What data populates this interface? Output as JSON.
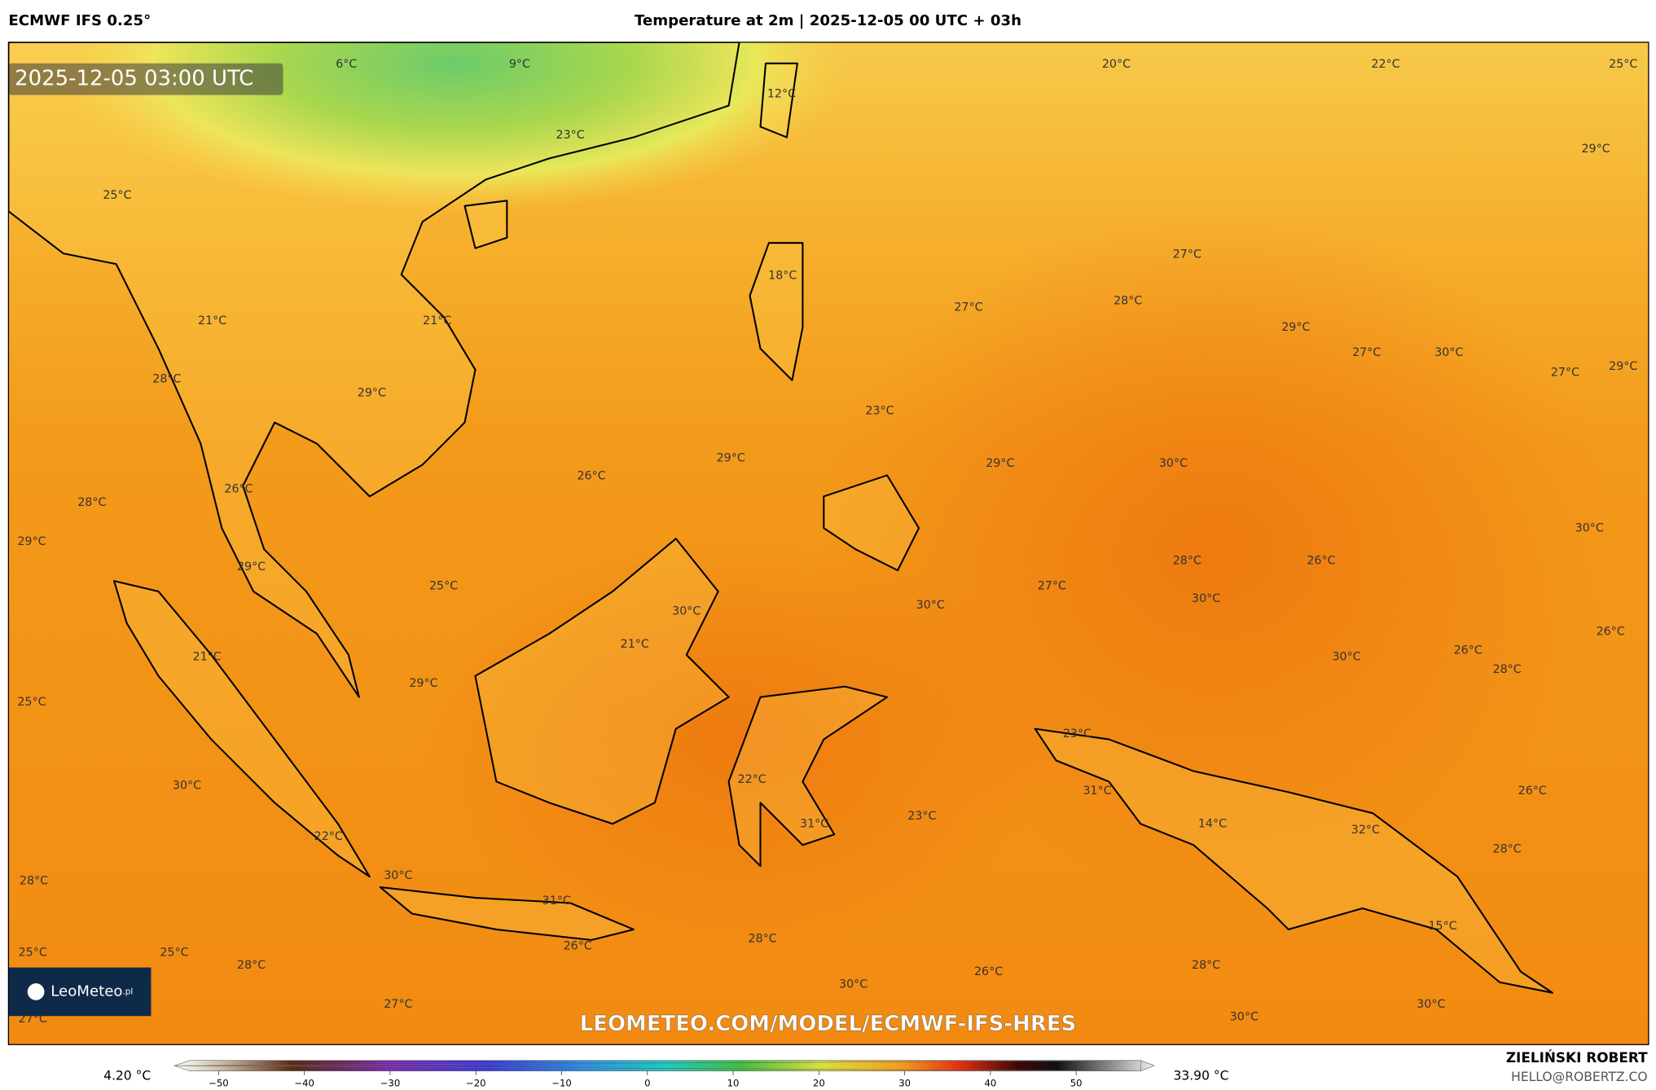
{
  "header": {
    "model": "ECMWF IFS 0.25°",
    "title": "Temperature at 2m | 2025-12-05 00 UTC + 03h"
  },
  "map": {
    "timestamp": "2025-12-05 03:00 UTC",
    "labels": [
      "6°C",
      "9°C",
      "12°C",
      "23°C",
      "20°C",
      "22°C",
      "25°C",
      "29°C",
      "25°C",
      "18°C",
      "27°C",
      "27°C",
      "28°C",
      "29°C",
      "27°C",
      "30°C",
      "27°C",
      "29°C",
      "21°C",
      "21°C",
      "28°C",
      "29°C",
      "23°C",
      "29°C",
      "29°C",
      "30°C",
      "26°C",
      "26°C",
      "28°C",
      "29°C",
      "30°C",
      "28°C",
      "26°C",
      "29°C",
      "25°C",
      "30°C",
      "27°C",
      "30°C",
      "30°C",
      "21°C",
      "26°C",
      "26°C",
      "28°C",
      "30°C",
      "21°C",
      "29°C",
      "25°C",
      "23°C",
      "30°C",
      "22°C",
      "31°C",
      "26°C",
      "14°C",
      "23°C",
      "31°C",
      "32°C",
      "22°C",
      "28°C",
      "30°C",
      "28°C",
      "31°C",
      "15°C",
      "28°C",
      "26°C",
      "25°C",
      "25°C",
      "28°C",
      "28°C",
      "26°C",
      "30°C",
      "30°C",
      "27°C",
      "27°C",
      "30°C"
    ],
    "watermark": "LEOMETEO.COM/MODEL/ECMWF-IFS-HRES",
    "logo": "LeoMeteo",
    "logo_suffix": ".pl"
  },
  "legend": {
    "min": "4.20 °C",
    "max": "33.90 °C",
    "ticks": [
      "−50",
      "−40",
      "−30",
      "−20",
      "−10",
      "0",
      "10",
      "20",
      "30",
      "40",
      "50"
    ]
  },
  "credit": {
    "author": "ZIELIŃSKI ROBERT",
    "email": "HELLO@ROBERTZ.CO"
  }
}
